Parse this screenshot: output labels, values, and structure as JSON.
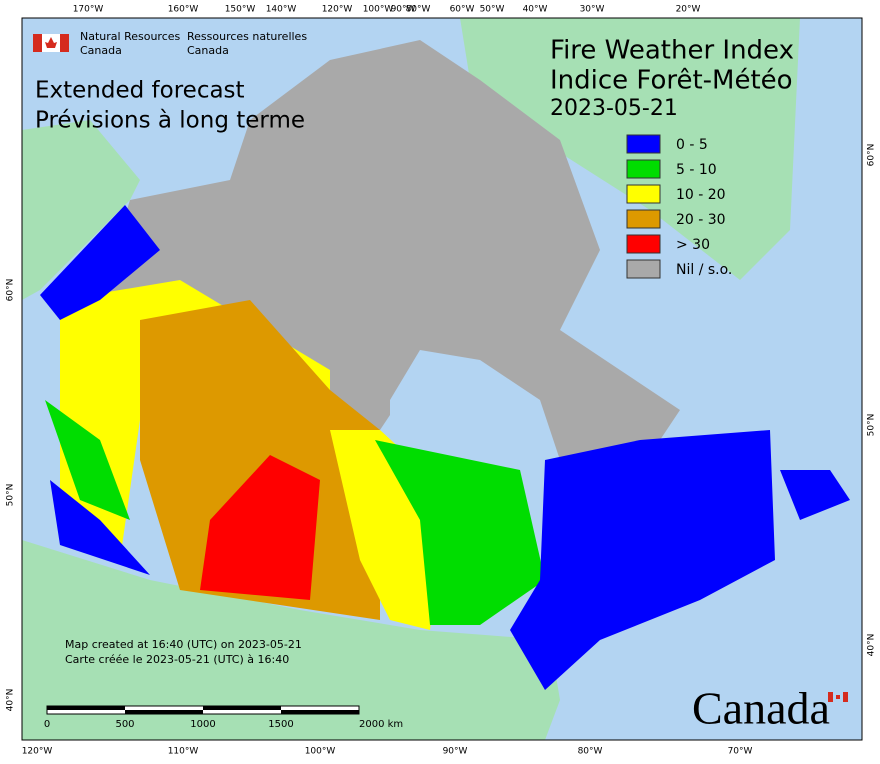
{
  "header": {
    "org_en_1": "Natural Resources",
    "org_en_2": "Canada",
    "org_fr_1": "Ressources naturelles",
    "org_fr_2": "Canada"
  },
  "title": [
    "Fire Weather Index",
    "Indice Forêt-Météo"
  ],
  "date": "2023-05-21",
  "subtitle": [
    "Extended forecast",
    "Prévisions à long terme"
  ],
  "legend": [
    {
      "label": "0 - 5",
      "color": "#0000ff"
    },
    {
      "label": "5 - 10",
      "color": "#00dd00"
    },
    {
      "label": "10 - 20",
      "color": "#ffff00"
    },
    {
      "label": "20 - 30",
      "color": "#dd9900"
    },
    {
      "label": "> 30",
      "color": "#ff0000"
    },
    {
      "label": "Nil / s.o.",
      "color": "#a9a9a9"
    }
  ],
  "credits": [
    "Map created at 16:40 (UTC) on 2023-05-21",
    "Carte créée le 2023-05-21 (UTC) à 16:40"
  ],
  "scale_bar": [
    "0",
    "500",
    "1000",
    "1500",
    "2000  km"
  ],
  "graticule": {
    "top": [
      "170°W",
      "160°W",
      "150°W",
      "140°W",
      "120°W",
      "100°W",
      "90°W",
      "80°W",
      "60°W",
      "50°W",
      "40°W",
      "30°W",
      "20°W"
    ],
    "bottom": [
      "120°W",
      "110°W",
      "100°W",
      "90°W",
      "80°W",
      "70°W"
    ],
    "left": [
      "60°N",
      "50°N",
      "40°N"
    ],
    "right": [
      "60°N",
      "50°N",
      "40°N"
    ]
  },
  "wordmark": "Canada"
}
